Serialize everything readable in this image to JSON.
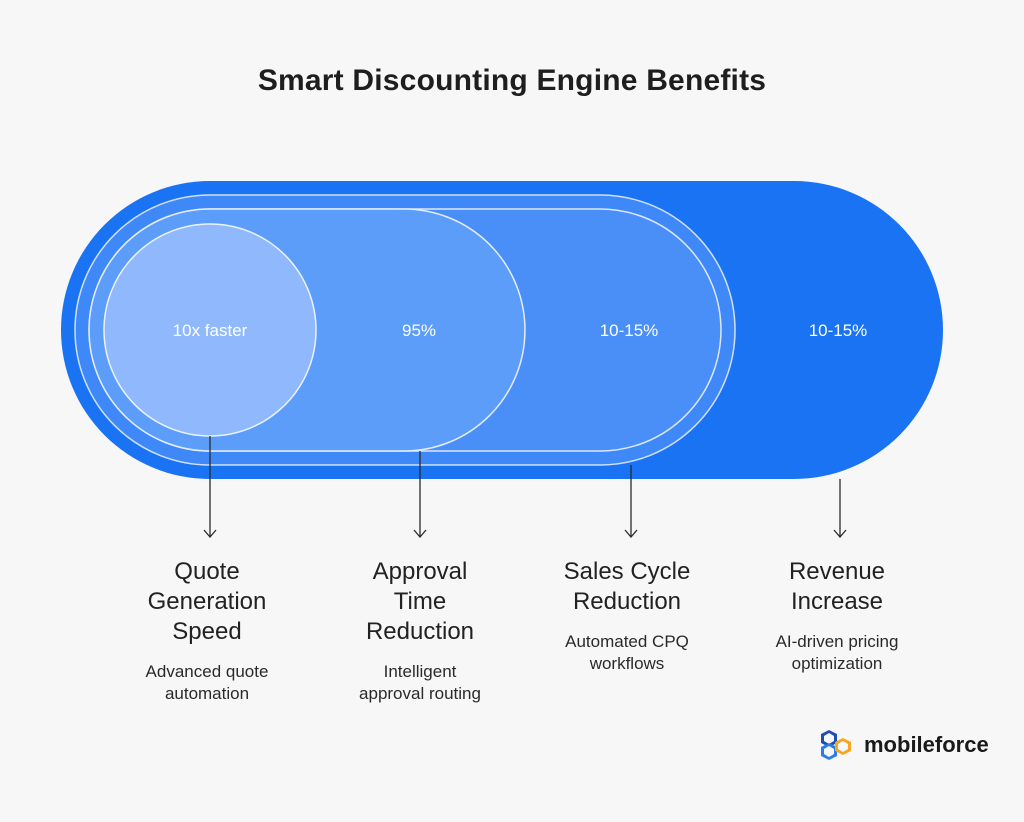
{
  "title": "Smart Discounting Engine Benefits",
  "stages": [
    {
      "value": "10x faster",
      "heading": [
        "Quote",
        "Generation",
        "Speed"
      ],
      "description": [
        "Advanced quote",
        "automation"
      ]
    },
    {
      "value": "95%",
      "heading": [
        "Approval",
        "Time",
        "Reduction"
      ],
      "description": [
        "Intelligent",
        "approval routing"
      ]
    },
    {
      "value": "10-15%",
      "heading": [
        "Sales Cycle",
        "Reduction"
      ],
      "description": [
        "Automated CPQ",
        "workflows"
      ]
    },
    {
      "value": "10-15%",
      "heading": [
        "Revenue",
        "Increase"
      ],
      "description": [
        "AI-driven pricing",
        "optimization"
      ]
    }
  ],
  "logo": {
    "text": "mobileforce"
  },
  "colors": {
    "outer": "#1a73f2",
    "ring": "#4a8ff7",
    "middle": "#3b86fa",
    "inner": "#5b9bfb",
    "circle": "#8fb9fc",
    "background": "#f7f7f7"
  }
}
